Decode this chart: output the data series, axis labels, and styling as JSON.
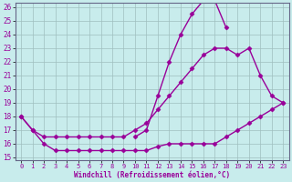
{
  "xlabel": "Windchill (Refroidissement éolien,°C)",
  "background_color": "#c8ecec",
  "line_color": "#990099",
  "grid_color": "#9fbfbf",
  "ylim": [
    15,
    26
  ],
  "xlim": [
    -0.5,
    23.5
  ],
  "yticks": [
    15,
    16,
    17,
    18,
    19,
    20,
    21,
    22,
    23,
    24,
    25,
    26
  ],
  "xticks": [
    0,
    1,
    2,
    3,
    4,
    5,
    6,
    7,
    8,
    9,
    10,
    11,
    12,
    13,
    14,
    15,
    16,
    17,
    18,
    19,
    20,
    21,
    22,
    23
  ],
  "marker": "D",
  "marker_size": 2.5,
  "line_width": 1.0,
  "line1_x": [
    0,
    1,
    2,
    3,
    4,
    5,
    6,
    7,
    8,
    9,
    10,
    11,
    12,
    13,
    14,
    15,
    16,
    17,
    18,
    19,
    20,
    21,
    22,
    23
  ],
  "line1_y": [
    18.0,
    17.0,
    16.0,
    15.5,
    15.5,
    15.5,
    15.5,
    15.5,
    15.5,
    15.5,
    15.5,
    15.5,
    15.8,
    16.0,
    16.0,
    16.0,
    16.0,
    16.0,
    16.5,
    17.0,
    17.5,
    18.0,
    18.5,
    19.0
  ],
  "line2_x": [
    0,
    1,
    2,
    3,
    4,
    5,
    6,
    7,
    8,
    9,
    10,
    11,
    12,
    13,
    14,
    15,
    16,
    17,
    18,
    19,
    20,
    21,
    22,
    23
  ],
  "line2_y": [
    18.0,
    17.0,
    16.5,
    16.5,
    16.5,
    16.5,
    16.5,
    16.5,
    16.5,
    16.5,
    17.0,
    17.5,
    18.5,
    19.5,
    20.5,
    21.5,
    22.5,
    23.0,
    23.0,
    22.5,
    23.0,
    21.0,
    19.5,
    19.0
  ],
  "line3_x": [
    10,
    11,
    12,
    13,
    14,
    15,
    16,
    17,
    18
  ],
  "line3_y": [
    16.5,
    17.0,
    19.5,
    22.0,
    24.0,
    25.5,
    26.5,
    26.5,
    24.5
  ]
}
